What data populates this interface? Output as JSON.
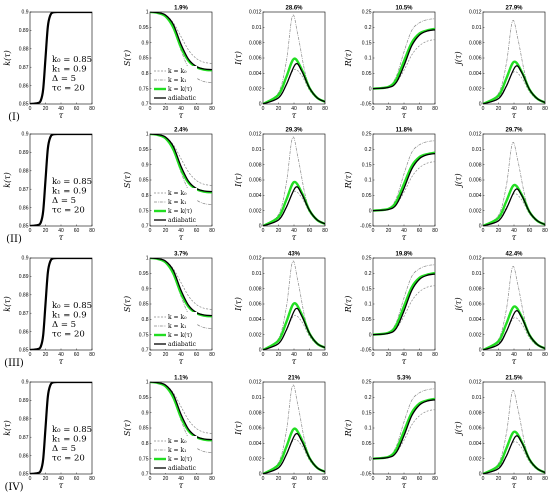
{
  "figure": {
    "rows": [
      {
        "label": "(I)",
        "k0": "k₀ = 0.85",
        "k1": "k₁ = 0.9",
        "delta": "Δ = 5",
        "tauc": "τc = 20",
        "titles": {
          "S": "1.9%",
          "I": "28.6%",
          "R": "10.5%",
          "j": "27.9%"
        }
      },
      {
        "label": "(II)",
        "k0": "k₀ = 0.85",
        "k1": "k₁ = 0.9",
        "delta": "Δ = 5",
        "tauc": "τc = 20",
        "titles": {
          "S": "2.4%",
          "I": "29.3%",
          "R": "11.8%",
          "j": "29.7%"
        }
      },
      {
        "label": "(III)",
        "k0": "k₀ = 0.85",
        "k1": "k₁ = 0.9",
        "delta": "Δ = 5",
        "tauc": "τc = 20",
        "titles": {
          "S": "3.7%",
          "I": "43%",
          "R": "19.8%",
          "j": "42.4%"
        }
      },
      {
        "label": "(IV)",
        "k0": "k₀ = 0.85",
        "k1": "k₁ = 0.9",
        "delta": "Δ = 5",
        "tauc": "τc = 20",
        "titles": {
          "S": "1.1%",
          "I": "21%",
          "R": "5.3%",
          "j": "21.5%"
        }
      }
    ],
    "legend": {
      "k0": "k = k₀",
      "k1": "k = k₁",
      "ktau": "k = k(τ)",
      "adiabatic": "adiabatic"
    },
    "colors": {
      "green": "#22dd22",
      "black": "#000000",
      "gray": "#888888"
    }
  },
  "chart_data": [
    {
      "type": "line",
      "panel": "k",
      "xlabel": "τ",
      "ylabel": "k(τ)",
      "xlim": [
        0,
        80
      ],
      "ylim": [
        0.85,
        0.9
      ],
      "xticks": [
        "0",
        "20",
        "40",
        "60",
        "80"
      ],
      "yticks": [
        "0.85",
        "0.86",
        "0.87",
        "0.88",
        "0.89",
        "0.9"
      ],
      "series": [
        {
          "name": "k(τ)",
          "x": [
            0,
            10,
            14,
            17,
            20,
            23,
            26,
            30,
            40,
            60,
            80
          ],
          "y": [
            0.85,
            0.8505,
            0.852,
            0.858,
            0.875,
            0.892,
            0.898,
            0.8998,
            0.9,
            0.9,
            0.9
          ]
        }
      ]
    },
    {
      "type": "line",
      "panel": "S",
      "xlabel": "τ",
      "ylabel": "S(τ)",
      "xlim": [
        0,
        80
      ],
      "ylim": [
        0.7,
        1
      ],
      "xticks": [
        "0",
        "20",
        "40",
        "60",
        "80"
      ],
      "yticks": [
        "0.7",
        "0.75",
        "0.8",
        "0.85",
        "0.9",
        "0.95",
        "1"
      ],
      "series": [
        {
          "name": "k = k₀",
          "x": [
            0,
            10,
            20,
            30,
            40,
            50,
            60,
            70,
            80
          ],
          "y": [
            1,
            0.998,
            0.99,
            0.965,
            0.92,
            0.875,
            0.848,
            0.836,
            0.832
          ]
        },
        {
          "name": "k = k₁",
          "x": [
            0,
            10,
            20,
            30,
            40,
            50,
            60,
            70,
            80
          ],
          "y": [
            1,
            0.997,
            0.985,
            0.945,
            0.875,
            0.815,
            0.785,
            0.773,
            0.77
          ]
        },
        {
          "name": "k = k(τ)",
          "x": [
            0,
            10,
            20,
            30,
            40,
            50,
            60,
            70,
            80
          ],
          "y": [
            1,
            0.997,
            0.986,
            0.95,
            0.885,
            0.84,
            0.82,
            0.812,
            0.81
          ]
        },
        {
          "name": "adiabatic",
          "x": [
            0,
            10,
            20,
            30,
            40,
            50,
            60,
            70,
            80
          ],
          "y": [
            1,
            0.998,
            0.99,
            0.96,
            0.895,
            0.845,
            0.822,
            0.814,
            0.812
          ]
        }
      ]
    },
    {
      "type": "line",
      "panel": "I",
      "xlabel": "τ",
      "ylabel": "I(τ)",
      "xlim": [
        0,
        80
      ],
      "ylim": [
        0,
        0.012
      ],
      "xticks": [
        "0",
        "20",
        "40",
        "60",
        "80"
      ],
      "yticks": [
        "0",
        "0.002",
        "0.004",
        "0.006",
        "0.008",
        "0.01",
        "0.012"
      ],
      "series": [
        {
          "name": "k = k₀",
          "x": [
            0,
            20,
            30,
            40,
            50,
            60,
            70,
            80
          ],
          "y": [
            0,
            0.0009,
            0.0025,
            0.0045,
            0.0037,
            0.0018,
            0.0007,
            0.0003
          ]
        },
        {
          "name": "k = k₁",
          "x": [
            0,
            20,
            30,
            38,
            45,
            55,
            65,
            80
          ],
          "y": [
            0,
            0.0015,
            0.0055,
            0.0115,
            0.009,
            0.0038,
            0.0012,
            0.0003
          ]
        },
        {
          "name": "k = k(τ)",
          "x": [
            0,
            20,
            30,
            40,
            50,
            60,
            70,
            80
          ],
          "y": [
            0,
            0.0012,
            0.0035,
            0.0059,
            0.0045,
            0.0021,
            0.0008,
            0.0003
          ]
        },
        {
          "name": "adiabatic",
          "x": [
            0,
            20,
            30,
            42,
            50,
            60,
            70,
            80
          ],
          "y": [
            0,
            0.0008,
            0.0025,
            0.0052,
            0.0043,
            0.0021,
            0.0008,
            0.0003
          ]
        }
      ]
    },
    {
      "type": "line",
      "panel": "R",
      "xlabel": "τ",
      "ylabel": "R(τ)",
      "xlim": [
        0,
        80
      ],
      "ylim": [
        -0.05,
        0.25
      ],
      "xticks": [
        "0",
        "20",
        "40",
        "60",
        "80"
      ],
      "yticks": [
        "-0.05",
        "0",
        "0.05",
        "0.1",
        "0.15",
        "0.2",
        "0.25"
      ],
      "series": [
        {
          "name": "k = k₀",
          "x": [
            0,
            20,
            30,
            40,
            50,
            60,
            70,
            80
          ],
          "y": [
            0,
            0.005,
            0.02,
            0.06,
            0.11,
            0.14,
            0.155,
            0.16
          ]
        },
        {
          "name": "k = k₁",
          "x": [
            0,
            20,
            30,
            40,
            50,
            60,
            70,
            80
          ],
          "y": [
            0,
            0.008,
            0.04,
            0.12,
            0.19,
            0.215,
            0.225,
            0.228
          ]
        },
        {
          "name": "k = k(τ)",
          "x": [
            0,
            20,
            30,
            40,
            50,
            60,
            70,
            80
          ],
          "y": [
            0,
            0.006,
            0.03,
            0.09,
            0.15,
            0.18,
            0.19,
            0.195
          ]
        },
        {
          "name": "adiabatic",
          "x": [
            0,
            20,
            30,
            40,
            50,
            60,
            70,
            80
          ],
          "y": [
            0,
            0.004,
            0.02,
            0.075,
            0.14,
            0.175,
            0.188,
            0.192
          ]
        }
      ]
    },
    {
      "type": "line",
      "panel": "j",
      "xlabel": "τ",
      "ylabel": "j(τ)",
      "xlim": [
        0,
        80
      ],
      "ylim": [
        0,
        0.012
      ],
      "xticks": [
        "0",
        "20",
        "40",
        "60",
        "80"
      ],
      "yticks": [
        "0",
        "0.002",
        "0.004",
        "0.006",
        "0.008",
        "0.01",
        "0.012"
      ],
      "series": [
        {
          "name": "k = k₀",
          "x": [
            0,
            20,
            30,
            40,
            50,
            60,
            70,
            80
          ],
          "y": [
            0,
            0.0009,
            0.0024,
            0.0042,
            0.0034,
            0.0016,
            0.0006,
            0.0002
          ]
        },
        {
          "name": "k = k₁",
          "x": [
            0,
            20,
            30,
            38,
            45,
            55,
            65,
            80
          ],
          "y": [
            0,
            0.0014,
            0.0052,
            0.0108,
            0.0085,
            0.0035,
            0.001,
            0.0002
          ]
        },
        {
          "name": "k = k(τ)",
          "x": [
            0,
            20,
            30,
            40,
            50,
            60,
            70,
            80
          ],
          "y": [
            0,
            0.0011,
            0.0033,
            0.0055,
            0.0042,
            0.0019,
            0.0007,
            0.0002
          ]
        },
        {
          "name": "adiabatic",
          "x": [
            0,
            20,
            30,
            42,
            50,
            60,
            70,
            80
          ],
          "y": [
            0,
            0.0007,
            0.0023,
            0.0049,
            0.0041,
            0.0019,
            0.0007,
            0.0002
          ]
        }
      ]
    }
  ]
}
